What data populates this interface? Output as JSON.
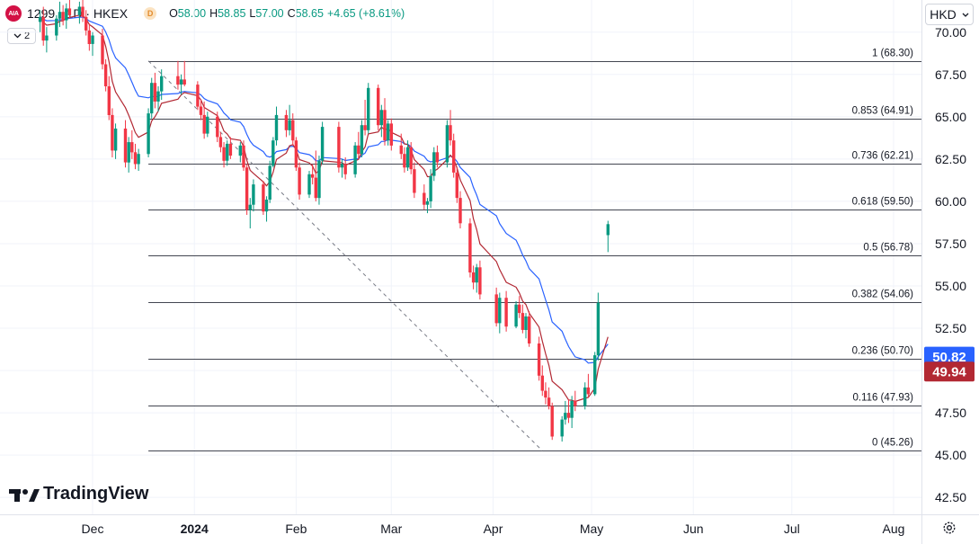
{
  "header": {
    "logo_text": "AIA",
    "symbol": "1299 · 1D · HKEX",
    "d_badge": "D",
    "open_label": "O",
    "open_value": "58.00",
    "high_label": "H",
    "high_value": "58.85",
    "low_label": "L",
    "low_value": "57.00",
    "close_label": "C",
    "close_value": "58.65",
    "change": "+4.65 (+8.61%)"
  },
  "collapse_button": {
    "count": "2"
  },
  "currency_button": {
    "label": "HKD"
  },
  "branding": {
    "name": "TradingView"
  },
  "colors": {
    "up": "#089981",
    "down": "#f23645",
    "fast_ma": "#b22833",
    "slow_ma": "#2962ff",
    "fib_line": "#434651",
    "grid": "#f0f3fa",
    "text": "#131722"
  },
  "chart_data": {
    "type": "candlestick",
    "ylim": [
      41.5,
      71.9
    ],
    "y_ticks": [
      "42.50",
      "45.00",
      "47.50",
      "50.00",
      "52.50",
      "55.00",
      "57.50",
      "60.00",
      "62.50",
      "65.00",
      "67.50",
      "70.00"
    ],
    "x_ticks": [
      "Dec",
      "2024",
      "Feb",
      "Mar",
      "Apr",
      "May",
      "Jun",
      "Jul",
      "Aug"
    ],
    "fib_levels": [
      {
        "ratio": "1",
        "price": 68.3
      },
      {
        "ratio": "0.853",
        "price": 64.91
      },
      {
        "ratio": "0.736",
        "price": 62.21
      },
      {
        "ratio": "0.618",
        "price": 59.5
      },
      {
        "ratio": "0.5",
        "price": 56.78
      },
      {
        "ratio": "0.382",
        "price": 54.06
      },
      {
        "ratio": "0.236",
        "price": 50.7
      },
      {
        "ratio": "0.116",
        "price": 47.93
      },
      {
        "ratio": "0",
        "price": 45.26
      }
    ],
    "price_labels": [
      {
        "value": "50.82",
        "series": "slow_ma"
      },
      {
        "value": "49.94",
        "series": "fast_ma"
      }
    ],
    "trend_line": {
      "from": [
        "2023-12-18",
        68.3
      ],
      "to": [
        "2024-04-16",
        45.26
      ]
    },
    "candles": [
      [
        "2023-11-15",
        70.6,
        71.3,
        70.0,
        70.9
      ],
      [
        "2023-11-16",
        70.9,
        71.5,
        69.2,
        69.5
      ],
      [
        "2023-11-17",
        69.5,
        70.3,
        68.8,
        69.8
      ],
      [
        "2023-11-20",
        69.8,
        71.0,
        69.5,
        70.8
      ],
      [
        "2023-11-21",
        70.8,
        71.8,
        70.3,
        71.2
      ],
      [
        "2023-11-22",
        71.2,
        71.6,
        70.4,
        70.7
      ],
      [
        "2023-11-23",
        70.7,
        71.7,
        70.2,
        71.4
      ],
      [
        "2023-11-24",
        71.4,
        71.9,
        70.8,
        71.0
      ],
      [
        "2023-11-27",
        71.0,
        71.8,
        70.5,
        71.5
      ],
      [
        "2023-11-28",
        71.5,
        71.9,
        70.6,
        70.9
      ],
      [
        "2023-11-29",
        70.9,
        71.3,
        69.8,
        70.1
      ],
      [
        "2023-11-30",
        70.1,
        70.5,
        68.9,
        69.3
      ],
      [
        "2023-12-01",
        69.3,
        70.0,
        68.6,
        69.8
      ],
      [
        "2023-12-04",
        69.8,
        70.2,
        67.8,
        68.1
      ],
      [
        "2023-12-05",
        68.1,
        68.4,
        66.5,
        66.8
      ],
      [
        "2023-12-06",
        66.8,
        67.4,
        64.8,
        65.1
      ],
      [
        "2023-12-07",
        65.1,
        65.5,
        62.6,
        63.0
      ],
      [
        "2023-12-08",
        63.0,
        64.6,
        62.5,
        64.3
      ],
      [
        "2023-12-11",
        64.3,
        64.8,
        62.0,
        62.3
      ],
      [
        "2023-12-12",
        62.3,
        63.8,
        61.7,
        63.5
      ],
      [
        "2023-12-13",
        63.5,
        64.2,
        62.5,
        62.9
      ],
      [
        "2023-12-14",
        62.9,
        63.4,
        61.9,
        62.2
      ],
      [
        "2023-12-15",
        62.2,
        63.1,
        61.8,
        62.8
      ],
      [
        "2023-12-18",
        62.8,
        65.5,
        62.6,
        65.2
      ],
      [
        "2023-12-19",
        65.2,
        67.3,
        64.9,
        67.0
      ],
      [
        "2023-12-20",
        67.0,
        67.6,
        65.5,
        65.9
      ],
      [
        "2023-12-21",
        65.9,
        66.8,
        65.3,
        66.5
      ],
      [
        "2023-12-22",
        66.5,
        67.8,
        66.0,
        67.4
      ],
      [
        "2023-12-27",
        67.4,
        68.3,
        66.6,
        66.9
      ],
      [
        "2023-12-28",
        66.9,
        67.5,
        66.3,
        67.2
      ],
      [
        "2023-12-29",
        67.2,
        68.3,
        66.8,
        66.9
      ],
      [
        "2024-01-02",
        66.9,
        67.1,
        65.4,
        65.6
      ],
      [
        "2024-01-03",
        65.6,
        66.0,
        64.8,
        65.1
      ],
      [
        "2024-01-04",
        65.1,
        65.9,
        63.7,
        64.0
      ],
      [
        "2024-01-05",
        64.0,
        65.3,
        63.8,
        65.0
      ],
      [
        "2024-01-08",
        65.0,
        65.3,
        63.5,
        63.8
      ],
      [
        "2024-01-09",
        63.8,
        64.1,
        62.9,
        63.2
      ],
      [
        "2024-01-10",
        63.2,
        63.5,
        62.0,
        62.4
      ],
      [
        "2024-01-11",
        62.4,
        63.6,
        62.1,
        63.4
      ],
      [
        "2024-01-12",
        63.4,
        63.8,
        62.5,
        62.7
      ],
      [
        "2024-01-15",
        62.7,
        63.5,
        62.3,
        63.3
      ],
      [
        "2024-01-16",
        63.3,
        63.6,
        61.8,
        62.0
      ],
      [
        "2024-01-17",
        62.0,
        62.2,
        59.2,
        59.5
      ],
      [
        "2024-01-18",
        59.5,
        60.2,
        58.4,
        59.8
      ],
      [
        "2024-01-19",
        59.8,
        61.3,
        59.4,
        61.0
      ],
      [
        "2024-01-22",
        61.0,
        61.2,
        59.2,
        59.4
      ],
      [
        "2024-01-23",
        59.4,
        60.3,
        58.8,
        60.1
      ],
      [
        "2024-01-24",
        60.1,
        62.4,
        59.9,
        62.1
      ],
      [
        "2024-01-25",
        62.1,
        63.8,
        62.0,
        63.6
      ],
      [
        "2024-01-26",
        63.6,
        65.6,
        63.3,
        65.1
      ],
      [
        "2024-01-29",
        65.1,
        65.4,
        63.8,
        64.2
      ],
      [
        "2024-01-30",
        64.2,
        65.7,
        63.9,
        64.8
      ],
      [
        "2024-01-31",
        64.8,
        65.2,
        63.3,
        63.6
      ],
      [
        "2024-02-01",
        63.6,
        63.8,
        61.8,
        62.0
      ],
      [
        "2024-02-02",
        62.0,
        62.3,
        60.1,
        60.4
      ],
      [
        "2024-02-05",
        60.4,
        61.8,
        60.2,
        61.6
      ],
      [
        "2024-02-06",
        61.6,
        62.2,
        61.0,
        61.4
      ],
      [
        "2024-02-07",
        61.4,
        63.0,
        60.0,
        60.2
      ],
      [
        "2024-02-08",
        60.2,
        62.7,
        59.8,
        62.4
      ],
      [
        "2024-02-09",
        62.4,
        64.7,
        62.2,
        64.4
      ],
      [
        "2024-02-14",
        64.4,
        64.7,
        61.7,
        62.0
      ],
      [
        "2024-02-15",
        62.0,
        62.5,
        61.4,
        62.2
      ],
      [
        "2024-02-16",
        62.2,
        62.6,
        61.3,
        61.6
      ],
      [
        "2024-02-19",
        61.6,
        63.5,
        61.4,
        63.3
      ],
      [
        "2024-02-20",
        63.3,
        64.1,
        62.5,
        62.8
      ],
      [
        "2024-02-21",
        62.8,
        64.8,
        62.6,
        64.5
      ],
      [
        "2024-02-22",
        64.5,
        66.0,
        63.9,
        64.2
      ],
      [
        "2024-02-23",
        64.2,
        67.0,
        64.0,
        66.7
      ],
      [
        "2024-02-26",
        66.7,
        66.9,
        64.2,
        64.5
      ],
      [
        "2024-02-27",
        64.5,
        65.7,
        63.8,
        65.4
      ],
      [
        "2024-02-28",
        65.4,
        66.1,
        63.3,
        63.6
      ],
      [
        "2024-02-29",
        63.6,
        64.8,
        63.3,
        64.6
      ],
      [
        "2024-03-01",
        64.6,
        64.9,
        63.0,
        63.3
      ],
      [
        "2024-03-04",
        63.3,
        64.0,
        62.5,
        62.8
      ],
      [
        "2024-03-05",
        62.8,
        63.2,
        61.7,
        62.0
      ],
      [
        "2024-03-06",
        62.0,
        63.6,
        61.8,
        63.2
      ],
      [
        "2024-03-07",
        63.2,
        63.5,
        61.6,
        61.9
      ],
      [
        "2024-03-08",
        61.9,
        62.3,
        60.2,
        60.5
      ],
      [
        "2024-03-11",
        60.5,
        61.0,
        59.5,
        59.8
      ],
      [
        "2024-03-12",
        59.8,
        60.2,
        59.3,
        60.0
      ],
      [
        "2024-03-13",
        60.0,
        61.9,
        59.6,
        61.5
      ],
      [
        "2024-03-14",
        61.5,
        63.2,
        61.2,
        62.9
      ],
      [
        "2024-03-15",
        62.9,
        63.3,
        62.0,
        62.3
      ],
      [
        "2024-03-18",
        62.3,
        64.8,
        62.0,
        64.5
      ],
      [
        "2024-03-19",
        64.5,
        65.4,
        63.3,
        63.6
      ],
      [
        "2024-03-20",
        63.6,
        64.0,
        61.4,
        61.7
      ],
      [
        "2024-03-21",
        61.7,
        62.0,
        59.9,
        60.2
      ],
      [
        "2024-03-22",
        60.2,
        60.6,
        58.4,
        58.7
      ],
      [
        "2024-03-25",
        58.7,
        59.0,
        55.5,
        55.8
      ],
      [
        "2024-03-26",
        55.8,
        56.2,
        54.8,
        55.2
      ],
      [
        "2024-03-27",
        55.2,
        56.3,
        54.6,
        56.1
      ],
      [
        "2024-03-28",
        56.1,
        56.5,
        54.2,
        54.5
      ],
      [
        "2024-04-02",
        54.5,
        54.9,
        52.6,
        52.8
      ],
      [
        "2024-04-03",
        52.8,
        54.6,
        52.2,
        54.3
      ],
      [
        "2024-04-05",
        54.3,
        54.7,
        52.3,
        52.6
      ],
      [
        "2024-04-08",
        52.6,
        54.1,
        52.5,
        53.9
      ],
      [
        "2024-04-09",
        53.9,
        54.4,
        53.1,
        53.4
      ],
      [
        "2024-04-10",
        53.4,
        53.9,
        52.2,
        52.4
      ],
      [
        "2024-04-11",
        52.4,
        53.4,
        51.9,
        53.2
      ],
      [
        "2024-04-12",
        53.2,
        53.5,
        51.4,
        51.6
      ],
      [
        "2024-04-15",
        51.6,
        52.0,
        49.4,
        49.7
      ],
      [
        "2024-04-16",
        49.7,
        50.3,
        48.5,
        48.8
      ],
      [
        "2024-04-17",
        48.8,
        49.3,
        48.0,
        48.4
      ],
      [
        "2024-04-18",
        48.4,
        49.0,
        47.7,
        47.9
      ],
      [
        "2024-04-19",
        47.9,
        48.1,
        45.9,
        46.1
      ],
      [
        "2024-04-22",
        46.1,
        47.3,
        45.8,
        47.1
      ],
      [
        "2024-04-23",
        47.1,
        48.2,
        46.8,
        47.5
      ],
      [
        "2024-04-24",
        47.5,
        48.3,
        46.9,
        47.2
      ],
      [
        "2024-04-25",
        47.2,
        48.5,
        46.6,
        48.2
      ],
      [
        "2024-04-26",
        48.2,
        48.8,
        47.6,
        47.9
      ],
      [
        "2024-04-29",
        47.9,
        49.3,
        47.7,
        49.0
      ],
      [
        "2024-04-30",
        49.0,
        49.8,
        48.4,
        48.6
      ],
      [
        "2024-05-02",
        48.6,
        51.1,
        48.5,
        50.9
      ],
      [
        "2024-05-03",
        50.9,
        54.6,
        50.6,
        54.0
      ],
      [
        "2024-05-06",
        58.0,
        58.85,
        57.0,
        58.65
      ]
    ]
  }
}
